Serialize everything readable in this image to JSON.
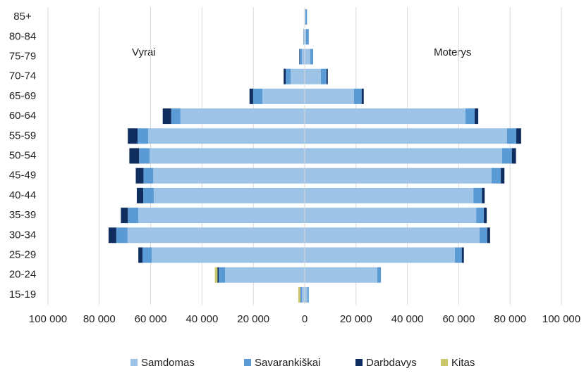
{
  "chart_data": {
    "type": "bar",
    "orientation": "horizontal",
    "stacked": true,
    "categories": [
      "15-19",
      "20-24",
      "25-29",
      "30-34",
      "35-39",
      "40-44",
      "45-49",
      "50-54",
      "55-59",
      "60-64",
      "65-69",
      "70-74",
      "75-79",
      "80-84",
      "85+"
    ],
    "left_label": "Vyrai",
    "right_label": "Moterys",
    "series": [
      {
        "name": "Samdomas",
        "color": "#9dc3e6",
        "male": [
          -1100,
          -31000,
          -59600,
          -69000,
          -64800,
          -58800,
          -59000,
          -60400,
          -61000,
          -48400,
          -16500,
          -5500,
          -1100,
          -300,
          0
        ],
        "female": [
          1100,
          28300,
          58500,
          68100,
          66800,
          65700,
          72800,
          76900,
          78800,
          62600,
          19200,
          6300,
          2200,
          500,
          300
        ]
      },
      {
        "name": "Savarankiškai",
        "color": "#5b9bd5",
        "male": [
          -500,
          -2500,
          -3600,
          -4400,
          -4100,
          -4100,
          -3800,
          -4100,
          -4100,
          -3600,
          -3600,
          -1900,
          -800,
          -200,
          0
        ],
        "female": [
          500,
          1400,
          2700,
          3000,
          3000,
          3300,
          3600,
          3800,
          3600,
          3600,
          3000,
          2200,
          1100,
          1100,
          600
        ]
      },
      {
        "name": "Darbdavys",
        "color": "#0f2d5e",
        "male": [
          -100,
          -500,
          -1600,
          -3000,
          -2700,
          -2500,
          -3000,
          -3800,
          -3800,
          -3300,
          -1400,
          -800,
          -200,
          0,
          0
        ],
        "female": [
          0,
          0,
          800,
          1100,
          1100,
          1100,
          1400,
          1600,
          1900,
          1400,
          800,
          500,
          0,
          0,
          0
        ]
      },
      {
        "name": "Kitas",
        "color": "#c9c96a",
        "male": [
          -800,
          -1000,
          0,
          0,
          0,
          0,
          0,
          0,
          0,
          0,
          0,
          0,
          0,
          0,
          0
        ],
        "female": [
          0,
          0,
          0,
          0,
          0,
          0,
          0,
          0,
          0,
          0,
          0,
          0,
          0,
          0,
          0
        ]
      }
    ],
    "xlim": [
      -100000,
      100000
    ],
    "xticks": [
      {
        "value": -100000,
        "label": "100 000"
      },
      {
        "value": -80000,
        "label": "80 000"
      },
      {
        "value": -60000,
        "label": "60 000"
      },
      {
        "value": -40000,
        "label": "40 000"
      },
      {
        "value": -20000,
        "label": "20 000"
      },
      0,
      {
        "value": 20000,
        "label": "20 000"
      },
      {
        "value": 40000,
        "label": "40 000"
      },
      {
        "value": 60000,
        "label": "60 000"
      },
      {
        "value": 80000,
        "label": "80 000"
      },
      {
        "value": 100000,
        "label": "100 000"
      }
    ],
    "grid": true,
    "legend": "bottom"
  }
}
